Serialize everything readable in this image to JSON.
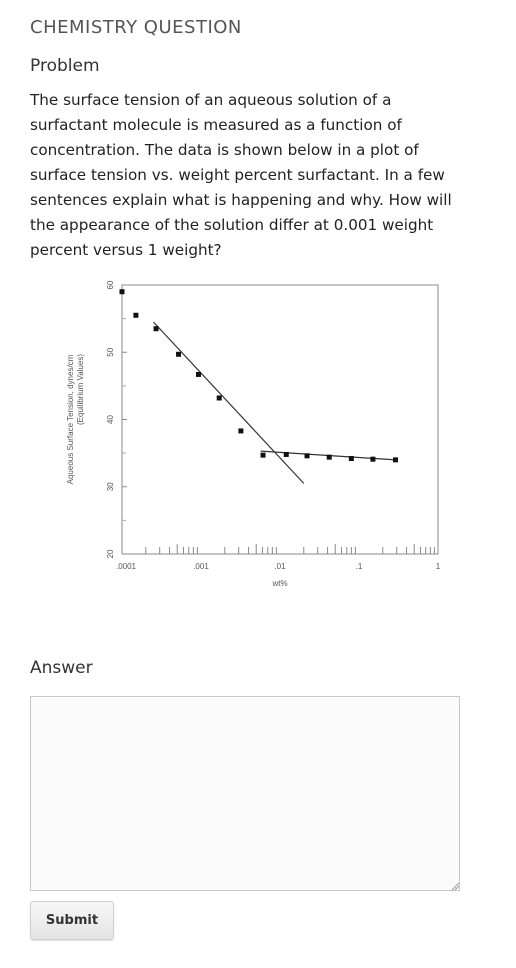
{
  "header": {
    "title": "CHEMISTRY QUESTION"
  },
  "problem": {
    "label": "Problem",
    "text": "The surface tension of an aqueous solution of a surfactant molecule is measured as a function of concentration. The data is shown below in a plot of surface tension vs. weight percent surfactant. In a few sentences explain what is happening and why. How will the appearance of the solution differ at 0.001 weight percent versus 1 weight?"
  },
  "chart_data": {
    "type": "scatter",
    "xscale": "log",
    "xlim": [
      0.0001,
      1
    ],
    "ylim": [
      20,
      60
    ],
    "xlabel": "wt%",
    "ylabel": "Aqueous Surface Tension, dynes/cm",
    "ylabel2": "(Equilibrium Values)",
    "x_ticks": [
      ".0001",
      ".001",
      ".01",
      ".1",
      "1"
    ],
    "y_ticks": [
      "20",
      "30",
      "40",
      "50",
      "60"
    ],
    "points": [
      [
        0.0001,
        59
      ],
      [
        0.00015,
        55.5
      ],
      [
        0.00027,
        53.5
      ],
      [
        0.00052,
        49.7
      ],
      [
        0.00093,
        46.7
      ],
      [
        0.0017,
        43.2
      ],
      [
        0.0032,
        38.3
      ],
      [
        0.0061,
        34.7
      ],
      [
        0.012,
        34.8
      ],
      [
        0.022,
        34.6
      ],
      [
        0.042,
        34.4
      ],
      [
        0.08,
        34.2
      ],
      [
        0.15,
        34.1
      ],
      [
        0.29,
        34.0
      ]
    ],
    "fit_lines": [
      {
        "from": [
          0.00025,
          54.5
        ],
        "to": [
          0.02,
          30.5
        ]
      },
      {
        "from": [
          0.0057,
          35.3
        ],
        "to": [
          0.29,
          34.0
        ]
      }
    ],
    "grid": false
  },
  "answer": {
    "label": "Answer",
    "value": "",
    "placeholder": ""
  },
  "submit": {
    "label": "Submit"
  }
}
